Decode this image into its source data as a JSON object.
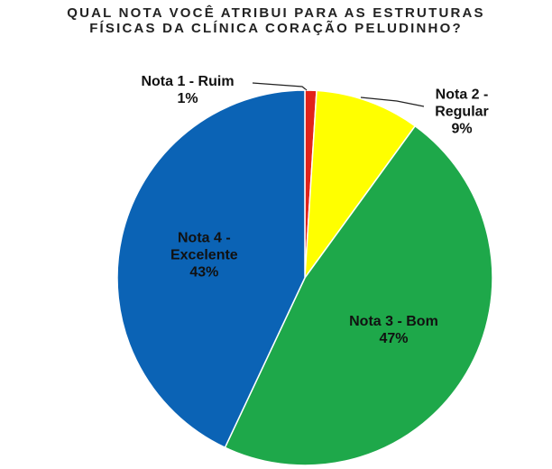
{
  "chart_data": {
    "type": "pie",
    "title": "QUAL NOTA VOCÊ ATRIBUI PARA AS ESTRUTURAS\nFÍSICAS DA CLÍNICA CORAÇÃO PELUDINHO?",
    "categories": [
      "Nota 1 - Ruim",
      "Nota 2 - Regular",
      "Nota 3 - Bom",
      "Nota 4 - Excelente"
    ],
    "values": [
      1,
      9,
      47,
      43
    ],
    "value_labels": [
      "1%",
      "9%",
      "47%",
      "43%"
    ],
    "colors": [
      "#e2231a",
      "#ffff00",
      "#1ea84a",
      "#0b63b5"
    ]
  }
}
